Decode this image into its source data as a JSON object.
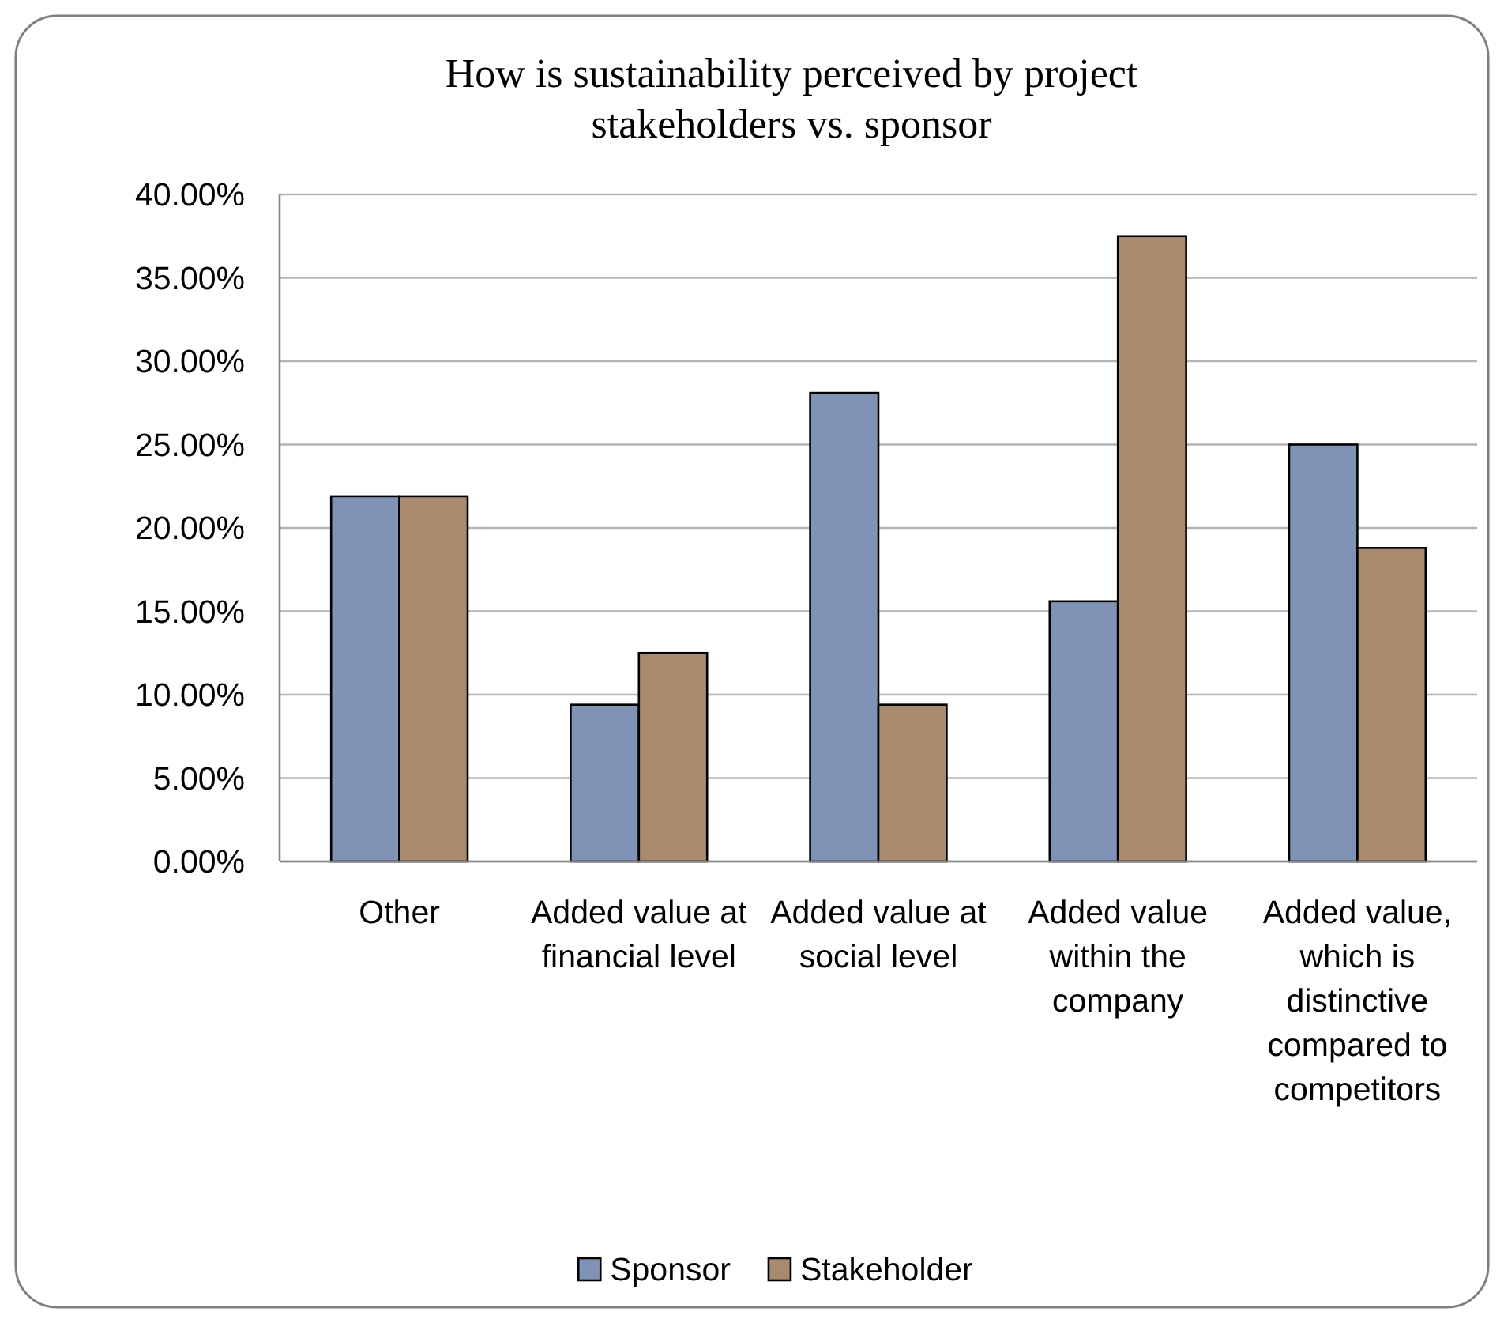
{
  "chart_data": {
    "type": "bar",
    "title": "How is sustainability perceived by project stakeholders vs. sponsor",
    "categories": [
      "Other",
      "Added value at financial level",
      "Added value at social level",
      "Added value within the company",
      "Added value, which is distinctive compared to competitors"
    ],
    "series": [
      {
        "name": "Sponsor",
        "color": "#8093b6",
        "values": [
          21.9,
          9.4,
          28.1,
          15.6,
          25.0
        ]
      },
      {
        "name": "Stakeholder",
        "color": "#a88b6e",
        "values": [
          21.9,
          12.5,
          9.4,
          37.5,
          18.8
        ]
      }
    ],
    "ylim": [
      0,
      40
    ],
    "yticks": [
      {
        "value": 0,
        "label": "0.00%"
      },
      {
        "value": 5,
        "label": "5.00%"
      },
      {
        "value": 10,
        "label": "10.00%"
      },
      {
        "value": 15,
        "label": "15.00%"
      },
      {
        "value": 20,
        "label": "20.00%"
      },
      {
        "value": 25,
        "label": "25.00%"
      },
      {
        "value": 30,
        "label": "30.00%"
      },
      {
        "value": 35,
        "label": "35.00%"
      },
      {
        "value": 40,
        "label": "40.00%"
      }
    ],
    "grid": "y",
    "legend": "bottom"
  }
}
